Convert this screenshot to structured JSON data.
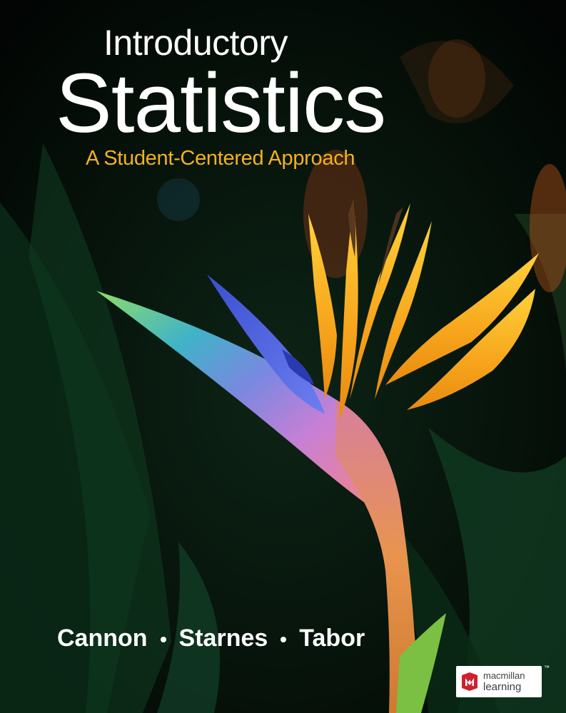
{
  "cover": {
    "title_line_1": "Introductory",
    "title_line_2": "Statistics",
    "subtitle": "A Student-Centered Approach",
    "authors": [
      "Cannon",
      "Starnes",
      "Tabor"
    ],
    "publisher": {
      "line_1": "macmillan",
      "line_2": "learning",
      "trademark": "™"
    },
    "image": "bird-of-paradise-flower",
    "colors": {
      "background": "#050a06",
      "title": "#ffffff",
      "subtitle": "#f2b21f",
      "publisher_red": "#d0202e"
    }
  }
}
